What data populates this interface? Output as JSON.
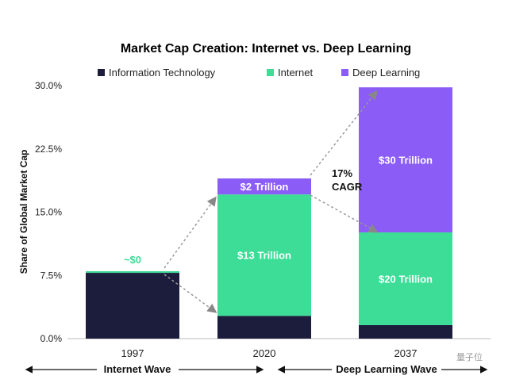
{
  "chart_data": {
    "type": "bar",
    "stacked": true,
    "title": "Market Cap Creation: Internet vs. Deep Learning",
    "xlabel": "",
    "ylabel": "Share of Global Market Cap",
    "ylim": [
      0,
      30
    ],
    "yticks": [
      "0.0%",
      "7.5%",
      "15.0%",
      "22.5%",
      "30.0%"
    ],
    "ytick_values": [
      0,
      7.5,
      15,
      22.5,
      30
    ],
    "categories": [
      "1997",
      "2020",
      "2037"
    ],
    "legend_position": "top",
    "series": [
      {
        "name": "Information Technology",
        "color": "#1c1c3c",
        "values": [
          7.8,
          2.7,
          1.6
        ]
      },
      {
        "name": "Internet",
        "color": "#3ddc97",
        "values": [
          0.2,
          14.4,
          11.0
        ]
      },
      {
        "name": "Deep Learning",
        "color": "#8b5cf6",
        "values": [
          0,
          1.9,
          17.2
        ]
      }
    ],
    "segment_labels": [
      {
        "category": "1997",
        "series": "Internet",
        "text": "~$0"
      },
      {
        "category": "2020",
        "series": "Internet",
        "text": "$13 Trillion"
      },
      {
        "category": "2020",
        "series": "Deep Learning",
        "text": "$2 Trillion"
      },
      {
        "category": "2037",
        "series": "Internet",
        "text": "$20 Trillion"
      },
      {
        "category": "2037",
        "series": "Deep Learning",
        "text": "$30 Trillion"
      }
    ],
    "annotations": {
      "cagr_line1": "17%",
      "cagr_line2": "CAGR",
      "internet_wave": "Internet Wave",
      "deep_learning_wave": "Deep Learning Wave"
    },
    "grid": false
  },
  "watermark": "量子位"
}
